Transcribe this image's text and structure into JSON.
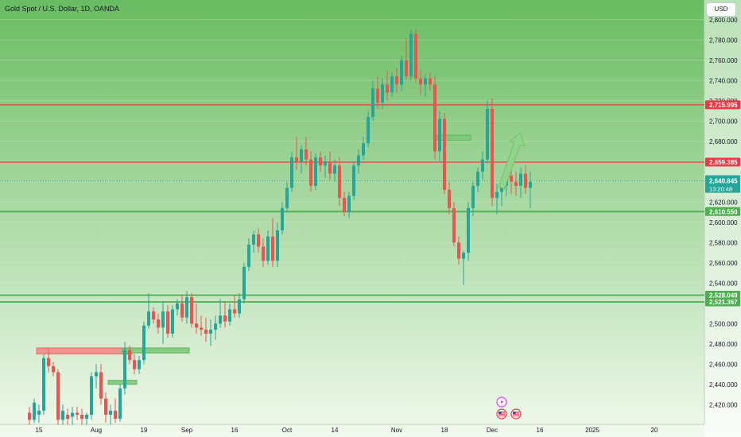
{
  "header": {
    "title": "Gold Spot / U.S. Dollar, 1D, OANDA",
    "currency": "USD"
  },
  "colors": {
    "background_top": "#69bc61",
    "background_bottom": "#f2f9ee",
    "bull": "#26a69a",
    "bear": "#ef5350",
    "resistance_line": "#f23645",
    "support_line": "#4caf50",
    "zone_red": "#f58a8a",
    "zone_green": "#7fc77a",
    "arrow": "#8fd48a",
    "grid": "#d8ecd2",
    "axis_text": "#131722"
  },
  "chart_data": {
    "type": "candlestick",
    "title": "Gold Spot / U.S. Dollar, 1D, OANDA",
    "ylim": [
      2410,
      2810
    ],
    "y_ticks": [
      2420,
      2440,
      2460,
      2480,
      2500,
      2520,
      2540,
      2560,
      2580,
      2600,
      2620,
      2640,
      2660,
      2680,
      2700,
      2720,
      2740,
      2760,
      2780,
      2800
    ],
    "y_tick_labels": [
      "2,420.000",
      "2,440.000",
      "2,460.000",
      "2,480.000",
      "2,500.000",
      "2,520.000",
      "2,540.000",
      "2,560.000",
      "2,580.000",
      "2,600.000",
      "2,620.000",
      "2,640.000",
      "2,660.000",
      "2,680.000",
      "2,700.000",
      "2,720.000",
      "2,740.000",
      "2,760.000",
      "2,780.000",
      "2,800.000"
    ],
    "x_tick_labels": [
      {
        "label": "15",
        "index": 2
      },
      {
        "label": "Aug",
        "index": 14
      },
      {
        "label": "19",
        "index": 24
      },
      {
        "label": "Sep",
        "index": 33
      },
      {
        "label": "16",
        "index": 43
      },
      {
        "label": "Oct",
        "index": 54
      },
      {
        "label": "14",
        "index": 64
      },
      {
        "label": "Nov",
        "index": 77
      },
      {
        "label": "18",
        "index": 87
      },
      {
        "label": "Dec",
        "index": 97
      },
      {
        "label": "16",
        "index": 107
      },
      {
        "label": "2025",
        "index": 118
      },
      {
        "label": "20",
        "index": 131
      }
    ],
    "candles": [
      {
        "o": 2412,
        "h": 2418,
        "l": 2400,
        "c": 2405
      },
      {
        "o": 2405,
        "h": 2426,
        "l": 2402,
        "c": 2422
      },
      {
        "o": 2410,
        "h": 2420,
        "l": 2402,
        "c": 2414
      },
      {
        "o": 2414,
        "h": 2470,
        "l": 2410,
        "c": 2466
      },
      {
        "o": 2466,
        "h": 2475,
        "l": 2452,
        "c": 2458
      },
      {
        "o": 2458,
        "h": 2462,
        "l": 2448,
        "c": 2452
      },
      {
        "o": 2452,
        "h": 2455,
        "l": 2400,
        "c": 2405
      },
      {
        "o": 2405,
        "h": 2420,
        "l": 2400,
        "c": 2414
      },
      {
        "o": 2410,
        "h": 2416,
        "l": 2400,
        "c": 2406
      },
      {
        "o": 2408,
        "h": 2418,
        "l": 2400,
        "c": 2412
      },
      {
        "o": 2412,
        "h": 2418,
        "l": 2405,
        "c": 2410
      },
      {
        "o": 2410,
        "h": 2416,
        "l": 2400,
        "c": 2406
      },
      {
        "o": 2406,
        "h": 2412,
        "l": 2400,
        "c": 2410
      },
      {
        "o": 2410,
        "h": 2452,
        "l": 2405,
        "c": 2448
      },
      {
        "o": 2448,
        "h": 2460,
        "l": 2436,
        "c": 2452
      },
      {
        "o": 2452,
        "h": 2460,
        "l": 2420,
        "c": 2426
      },
      {
        "o": 2426,
        "h": 2432,
        "l": 2402,
        "c": 2410
      },
      {
        "o": 2410,
        "h": 2420,
        "l": 2400,
        "c": 2414
      },
      {
        "o": 2414,
        "h": 2426,
        "l": 2402,
        "c": 2406
      },
      {
        "o": 2406,
        "h": 2440,
        "l": 2403,
        "c": 2436
      },
      {
        "o": 2436,
        "h": 2482,
        "l": 2430,
        "c": 2474
      },
      {
        "o": 2474,
        "h": 2478,
        "l": 2460,
        "c": 2464
      },
      {
        "o": 2464,
        "h": 2470,
        "l": 2450,
        "c": 2455
      },
      {
        "o": 2455,
        "h": 2468,
        "l": 2450,
        "c": 2464
      },
      {
        "o": 2464,
        "h": 2502,
        "l": 2460,
        "c": 2498
      },
      {
        "o": 2498,
        "h": 2530,
        "l": 2495,
        "c": 2512
      },
      {
        "o": 2512,
        "h": 2516,
        "l": 2500,
        "c": 2504
      },
      {
        "o": 2504,
        "h": 2510,
        "l": 2490,
        "c": 2496
      },
      {
        "o": 2496,
        "h": 2522,
        "l": 2480,
        "c": 2512
      },
      {
        "o": 2512,
        "h": 2518,
        "l": 2486,
        "c": 2490
      },
      {
        "o": 2490,
        "h": 2518,
        "l": 2486,
        "c": 2514
      },
      {
        "o": 2514,
        "h": 2524,
        "l": 2508,
        "c": 2520
      },
      {
        "o": 2520,
        "h": 2528,
        "l": 2502,
        "c": 2506
      },
      {
        "o": 2506,
        "h": 2532,
        "l": 2500,
        "c": 2526
      },
      {
        "o": 2526,
        "h": 2530,
        "l": 2496,
        "c": 2500
      },
      {
        "o": 2500,
        "h": 2520,
        "l": 2490,
        "c": 2496
      },
      {
        "o": 2496,
        "h": 2508,
        "l": 2488,
        "c": 2494
      },
      {
        "o": 2494,
        "h": 2506,
        "l": 2482,
        "c": 2490
      },
      {
        "o": 2490,
        "h": 2504,
        "l": 2478,
        "c": 2494
      },
      {
        "o": 2494,
        "h": 2508,
        "l": 2484,
        "c": 2500
      },
      {
        "o": 2500,
        "h": 2524,
        "l": 2496,
        "c": 2508
      },
      {
        "o": 2508,
        "h": 2522,
        "l": 2496,
        "c": 2502
      },
      {
        "o": 2502,
        "h": 2520,
        "l": 2498,
        "c": 2514
      },
      {
        "o": 2514,
        "h": 2528,
        "l": 2506,
        "c": 2510
      },
      {
        "o": 2510,
        "h": 2530,
        "l": 2506,
        "c": 2524
      },
      {
        "o": 2524,
        "h": 2560,
        "l": 2520,
        "c": 2556
      },
      {
        "o": 2556,
        "h": 2584,
        "l": 2552,
        "c": 2578
      },
      {
        "o": 2578,
        "h": 2592,
        "l": 2570,
        "c": 2588
      },
      {
        "o": 2588,
        "h": 2594,
        "l": 2570,
        "c": 2576
      },
      {
        "o": 2576,
        "h": 2584,
        "l": 2556,
        "c": 2562
      },
      {
        "o": 2562,
        "h": 2592,
        "l": 2558,
        "c": 2586
      },
      {
        "o": 2586,
        "h": 2604,
        "l": 2556,
        "c": 2562
      },
      {
        "o": 2562,
        "h": 2600,
        "l": 2556,
        "c": 2592
      },
      {
        "o": 2592,
        "h": 2620,
        "l": 2588,
        "c": 2614
      },
      {
        "o": 2614,
        "h": 2640,
        "l": 2610,
        "c": 2634
      },
      {
        "o": 2634,
        "h": 2670,
        "l": 2630,
        "c": 2664
      },
      {
        "o": 2664,
        "h": 2684,
        "l": 2652,
        "c": 2660
      },
      {
        "o": 2660,
        "h": 2676,
        "l": 2648,
        "c": 2672
      },
      {
        "o": 2672,
        "h": 2684,
        "l": 2656,
        "c": 2662
      },
      {
        "o": 2662,
        "h": 2670,
        "l": 2630,
        "c": 2636
      },
      {
        "o": 2636,
        "h": 2668,
        "l": 2632,
        "c": 2664
      },
      {
        "o": 2664,
        "h": 2670,
        "l": 2650,
        "c": 2656
      },
      {
        "o": 2656,
        "h": 2666,
        "l": 2644,
        "c": 2660
      },
      {
        "o": 2660,
        "h": 2670,
        "l": 2642,
        "c": 2648
      },
      {
        "o": 2648,
        "h": 2662,
        "l": 2640,
        "c": 2656
      },
      {
        "o": 2656,
        "h": 2664,
        "l": 2616,
        "c": 2624
      },
      {
        "o": 2624,
        "h": 2630,
        "l": 2606,
        "c": 2610
      },
      {
        "o": 2610,
        "h": 2630,
        "l": 2604,
        "c": 2626
      },
      {
        "o": 2626,
        "h": 2660,
        "l": 2622,
        "c": 2656
      },
      {
        "o": 2656,
        "h": 2672,
        "l": 2648,
        "c": 2666
      },
      {
        "o": 2666,
        "h": 2684,
        "l": 2662,
        "c": 2678
      },
      {
        "o": 2678,
        "h": 2710,
        "l": 2674,
        "c": 2704
      },
      {
        "o": 2704,
        "h": 2740,
        "l": 2700,
        "c": 2732
      },
      {
        "o": 2732,
        "h": 2744,
        "l": 2712,
        "c": 2718
      },
      {
        "o": 2718,
        "h": 2742,
        "l": 2712,
        "c": 2736
      },
      {
        "o": 2736,
        "h": 2750,
        "l": 2720,
        "c": 2728
      },
      {
        "o": 2728,
        "h": 2748,
        "l": 2724,
        "c": 2744
      },
      {
        "o": 2744,
        "h": 2752,
        "l": 2728,
        "c": 2736
      },
      {
        "o": 2736,
        "h": 2764,
        "l": 2730,
        "c": 2760
      },
      {
        "o": 2760,
        "h": 2782,
        "l": 2740,
        "c": 2744
      },
      {
        "o": 2744,
        "h": 2790,
        "l": 2740,
        "c": 2786
      },
      {
        "o": 2786,
        "h": 2790,
        "l": 2738,
        "c": 2742
      },
      {
        "o": 2742,
        "h": 2750,
        "l": 2726,
        "c": 2736
      },
      {
        "o": 2736,
        "h": 2746,
        "l": 2724,
        "c": 2742
      },
      {
        "o": 2742,
        "h": 2748,
        "l": 2730,
        "c": 2736
      },
      {
        "o": 2736,
        "h": 2744,
        "l": 2662,
        "c": 2670
      },
      {
        "o": 2670,
        "h": 2710,
        "l": 2660,
        "c": 2702
      },
      {
        "o": 2702,
        "h": 2708,
        "l": 2628,
        "c": 2632
      },
      {
        "o": 2632,
        "h": 2640,
        "l": 2608,
        "c": 2614
      },
      {
        "o": 2614,
        "h": 2620,
        "l": 2576,
        "c": 2580
      },
      {
        "o": 2580,
        "h": 2586,
        "l": 2558,
        "c": 2564
      },
      {
        "o": 2564,
        "h": 2572,
        "l": 2538,
        "c": 2570
      },
      {
        "o": 2570,
        "h": 2620,
        "l": 2562,
        "c": 2614
      },
      {
        "o": 2614,
        "h": 2640,
        "l": 2606,
        "c": 2636
      },
      {
        "o": 2636,
        "h": 2654,
        "l": 2630,
        "c": 2650
      },
      {
        "o": 2650,
        "h": 2670,
        "l": 2642,
        "c": 2662
      },
      {
        "o": 2662,
        "h": 2720,
        "l": 2658,
        "c": 2712
      },
      {
        "o": 2712,
        "h": 2722,
        "l": 2616,
        "c": 2624
      },
      {
        "o": 2624,
        "h": 2638,
        "l": 2608,
        "c": 2630
      },
      {
        "o": 2630,
        "h": 2640,
        "l": 2616,
        "c": 2636
      },
      {
        "o": 2636,
        "h": 2654,
        "l": 2626,
        "c": 2646
      },
      {
        "o": 2646,
        "h": 2664,
        "l": 2628,
        "c": 2640
      },
      {
        "o": 2640,
        "h": 2650,
        "l": 2626,
        "c": 2636
      },
      {
        "o": 2636,
        "h": 2654,
        "l": 2624,
        "c": 2648
      },
      {
        "o": 2648,
        "h": 2656,
        "l": 2628,
        "c": 2634
      },
      {
        "o": 2634,
        "h": 2650,
        "l": 2614,
        "c": 2640
      }
    ],
    "horizontal_lines": [
      {
        "value": 2715.995,
        "label": "2,715.995",
        "kind": "resistance"
      },
      {
        "value": 2659.385,
        "label": "2,659.385",
        "kind": "resistance"
      },
      {
        "value": 2610.55,
        "label": "2,610.550",
        "kind": "support"
      },
      {
        "value": 2528.049,
        "label": "2,528.049",
        "kind": "support"
      },
      {
        "value": 2521.367,
        "label": "2,521.367",
        "kind": "support"
      }
    ],
    "current_price": {
      "value": 2640.845,
      "label": "2,640.845",
      "countdown": "13:20:48"
    },
    "zones": [
      {
        "kind": "red",
        "from_index": 2,
        "to_index": 21,
        "top": 2476,
        "bottom": 2470
      },
      {
        "kind": "green",
        "from_index": 20,
        "to_index": 33,
        "top": 2476,
        "bottom": 2471
      },
      {
        "kind": "green",
        "from_index": 17,
        "to_index": 22,
        "top": 2444,
        "bottom": 2440
      },
      {
        "kind": "green",
        "from_index": 86,
        "to_index": 92,
        "top": 2686,
        "bottom": 2681
      }
    ],
    "arrow": {
      "from_index": 99,
      "from_value": 2634,
      "to_index": 103,
      "to_value": 2688
    },
    "events": [
      {
        "icon": "lightning-icon",
        "index": 99
      },
      {
        "icon": "us-flag-icon",
        "index": 99
      },
      {
        "icon": "us-flag-icon",
        "index": 102
      }
    ]
  }
}
